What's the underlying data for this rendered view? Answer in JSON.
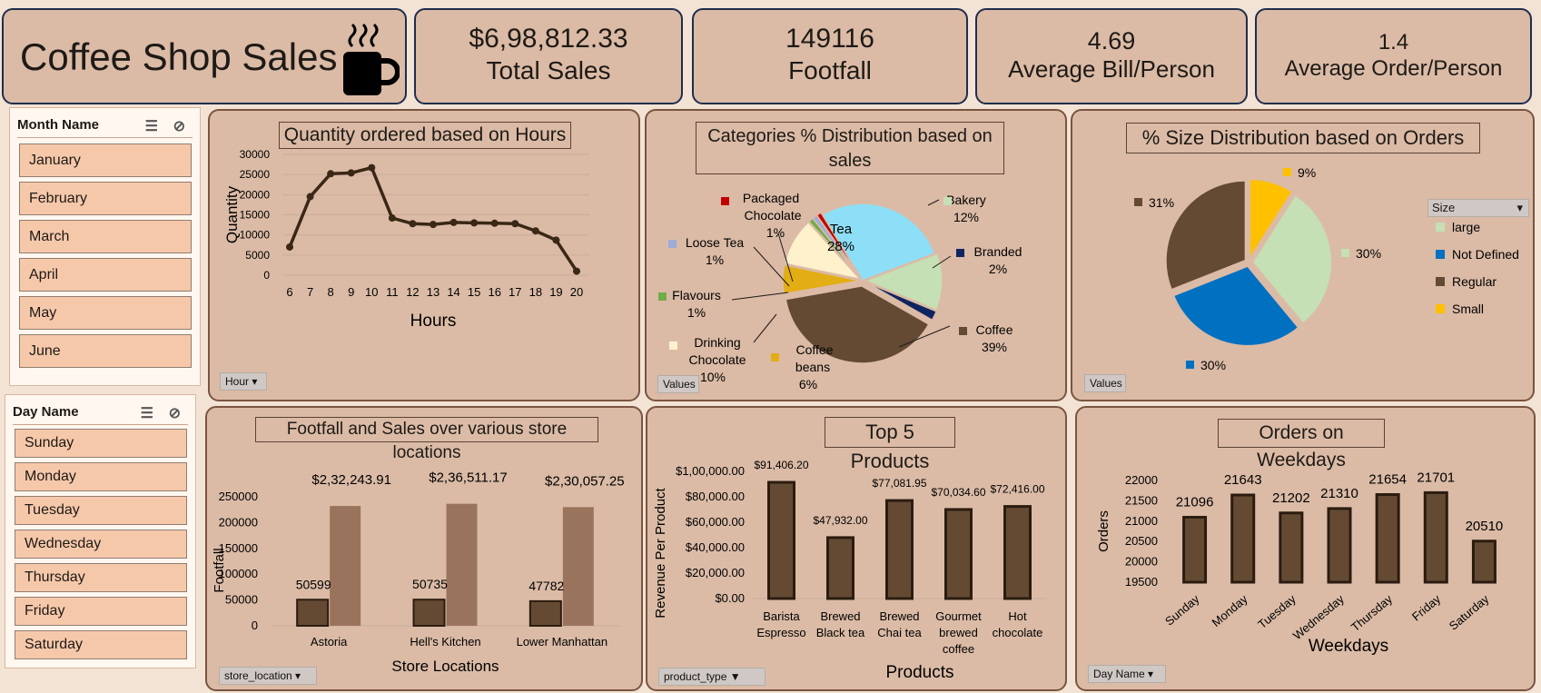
{
  "header": {
    "title": "Coffee Shop Sales",
    "kpis": [
      {
        "value": "$6,98,812.33",
        "label": "Total Sales"
      },
      {
        "value": "149116",
        "label": "Footfall"
      },
      {
        "value": "4.69",
        "label": "Average Bill/Person"
      },
      {
        "value": "1.4",
        "label": "Average Order/Person"
      }
    ]
  },
  "slicers": {
    "month": {
      "title": "Month Name",
      "items": [
        "January",
        "February",
        "March",
        "April",
        "May",
        "June"
      ]
    },
    "day": {
      "title": "Day Name",
      "items": [
        "Sunday",
        "Monday",
        "Tuesday",
        "Wednesday",
        "Thursday",
        "Friday",
        "Saturday"
      ]
    }
  },
  "colors": {
    "background": "#f3e3d5",
    "panel": "#dbbba6",
    "slicer_item": "#f6c8aa",
    "dark_brown": "#654a33",
    "light_brown": "#9a735c"
  },
  "panels": {
    "hours": {
      "title": "Quantity ordered based on Hours",
      "button": "Hour"
    },
    "categories": {
      "title_line1": "Categories % Distribution based on",
      "title_line2": "sales",
      "button": "Values"
    },
    "size": {
      "title": "% Size Distribution based on Orders",
      "button": "Values",
      "legend_title": "Size"
    },
    "store": {
      "title": "Footfall and Sales over various store locations",
      "button": "store_location"
    },
    "products": {
      "title": "Top 5 Products",
      "button": "product_type"
    },
    "weekdays": {
      "title": "Orders on Weekdays",
      "button": "Day  Name"
    }
  },
  "chart_data": [
    {
      "type": "line",
      "title": "Quantity ordered based on Hours",
      "xlabel": "Hours",
      "ylabel": "Quantity",
      "x": [
        "6",
        "7",
        "8",
        "9",
        "10",
        "11",
        "12",
        "13",
        "14",
        "15",
        "16",
        "17",
        "18",
        "19",
        "20"
      ],
      "series": [
        {
          "values": [
            7000,
            19500,
            25200,
            25400,
            26700,
            14200,
            12800,
            12600,
            13100,
            13000,
            12900,
            12800,
            11000,
            8700,
            1000
          ]
        }
      ],
      "yticks": [
        "0",
        "5000",
        "10000",
        "15000",
        "20000",
        "25000",
        "30000"
      ],
      "ylim": [
        0,
        30000
      ],
      "grid": true
    },
    {
      "type": "pie",
      "title": "Categories % Distribution based on sales",
      "slices": [
        {
          "label": "Tea",
          "value": 28,
          "pct": "28%",
          "color": "#8ddff7"
        },
        {
          "label": "Bakery",
          "value": 12,
          "pct": "12%",
          "color": "#c5e0b4"
        },
        {
          "label": "Branded",
          "value": 2,
          "pct": "2%",
          "color": "#0f2561"
        },
        {
          "label": "Coffee",
          "value": 39,
          "pct": "39%",
          "color": "#644a33"
        },
        {
          "label": "Coffee beans",
          "value": 6,
          "pct": "6%",
          "color": "#e3ad15"
        },
        {
          "label": "Drinking Chocolate",
          "value": 10,
          "pct": "10%",
          "color": "#fff1cc"
        },
        {
          "label": "Flavours",
          "value": 1,
          "pct": "1%",
          "color": "#70ad47"
        },
        {
          "label": "Loose Tea",
          "value": 1,
          "pct": "1%",
          "color": "#9dacd9"
        },
        {
          "label": "Packaged Chocolate",
          "value": 1,
          "pct": "1%",
          "color": "#c00000"
        }
      ]
    },
    {
      "type": "pie",
      "title": "% Size Distribution based on Orders",
      "legend": "right",
      "slices": [
        {
          "label": "large",
          "value": 30,
          "pct": "30%",
          "color": "#c5e0b4"
        },
        {
          "label": "Not Defined",
          "value": 30,
          "pct": "30%",
          "color": "#0070c0"
        },
        {
          "label": "Regular",
          "value": 31,
          "pct": "31%",
          "color": "#644a33"
        },
        {
          "label": "Small",
          "value": 9,
          "pct": "9%",
          "color": "#ffc000"
        }
      ]
    },
    {
      "type": "bar",
      "title": "Footfall and Sales over various store locations",
      "xlabel": "Store Locations",
      "ylabel": "Footfall",
      "categories": [
        "Astoria",
        "Hell's Kitchen",
        "Lower Manhattan"
      ],
      "series": [
        {
          "values": [
            50599,
            50735,
            47782
          ],
          "labels": [
            "50599",
            "50735",
            "47782"
          ],
          "color": "#654a33"
        },
        {
          "values": [
            232243.91,
            236511.17,
            230057.25
          ],
          "labels": [
            "$2,32,243.91",
            "$2,36,511.17",
            "$2,30,057.25"
          ],
          "color": "#9a735c"
        }
      ],
      "yticks": [
        "0",
        "50000",
        "100000",
        "150000",
        "200000",
        "250000"
      ],
      "ylim": [
        0,
        250000
      ]
    },
    {
      "type": "bar",
      "title": "Top 5 Products",
      "xlabel": "Products",
      "ylabel": "Revenue Per Product",
      "categories": [
        [
          "Barista",
          "Espresso"
        ],
        [
          "Brewed",
          "Black tea"
        ],
        [
          "Brewed",
          "Chai tea"
        ],
        [
          "Gourmet",
          "brewed",
          "coffee"
        ],
        [
          "Hot",
          "chocolate"
        ]
      ],
      "values": [
        91406.2,
        47932.0,
        77081.95,
        70034.6,
        72416.0
      ],
      "labels": [
        "$91,406.20",
        "$47,932.00",
        "$77,081.95",
        "$70,034.60",
        "$72,416.00"
      ],
      "yticks": [
        "$0.00",
        "$20,000.00",
        "$40,000.00",
        "$60,000.00",
        "$80,000.00",
        "$1,00,000.00"
      ],
      "ylim": [
        0,
        100000
      ]
    },
    {
      "type": "bar",
      "title": "Orders on Weekdays",
      "xlabel": "Weekdays",
      "ylabel": "Orders",
      "categories": [
        "Sunday",
        "Monday",
        "Tuesday",
        "Wednesday",
        "Thursday",
        "Friday",
        "Saturday"
      ],
      "values": [
        21096,
        21643,
        21202,
        21310,
        21654,
        21701,
        20510
      ],
      "labels": [
        "21096",
        "21643",
        "21202",
        "21310",
        "21654",
        "21701",
        "20510"
      ],
      "yticks": [
        "19500",
        "20000",
        "20500",
        "21000",
        "21500",
        "22000"
      ],
      "ylim": [
        19500,
        22000
      ]
    }
  ]
}
